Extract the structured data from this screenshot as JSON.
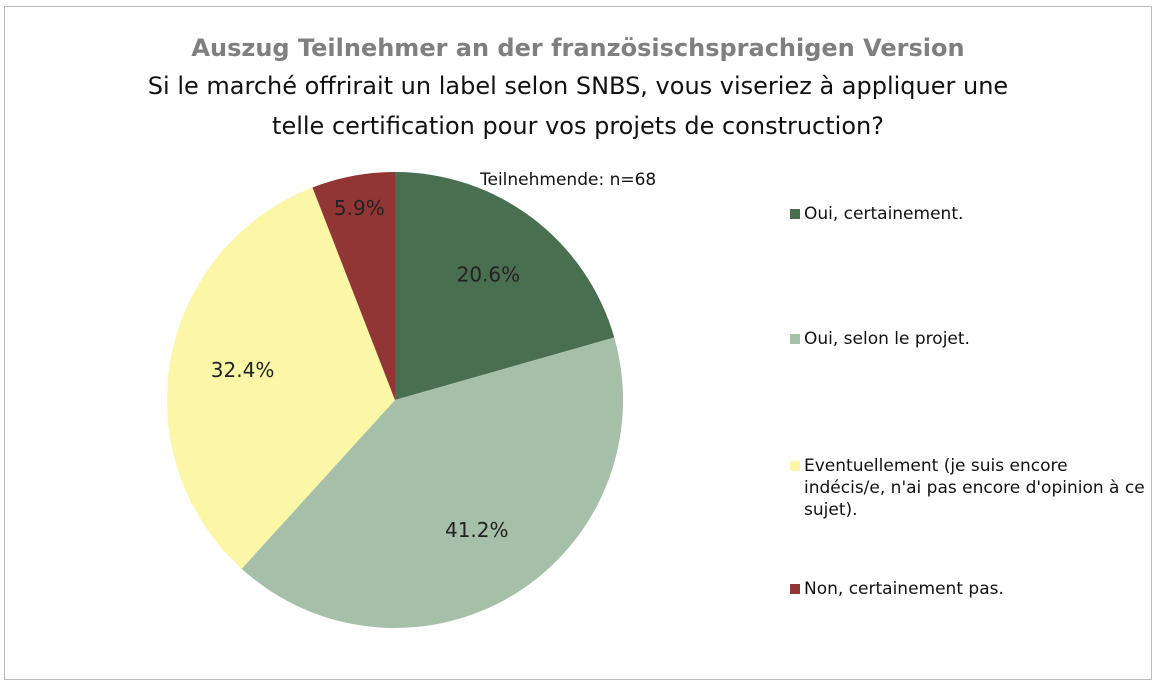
{
  "chart_data": {
    "type": "pie",
    "title": "Auszug Teilnehmer an der französischsprachigen Version",
    "subtitle": "Si le marché offrirait un label selon SNBS, vous viseriez à appliquer une telle certification pour vos projets de construction?",
    "annotation": "Teilnehmende: n=68",
    "categories": [
      "Oui, certainement.",
      "Oui, selon le projet.",
      "Eventuellement (je suis encore indécis/e, n'ai pas encore d'opinion à ce sujet).",
      "Non, certainement pas."
    ],
    "values": [
      20.6,
      41.2,
      32.4,
      5.9
    ],
    "value_labels": [
      "20.6%",
      "41.2%",
      "32.4%",
      "5.9%"
    ],
    "colors": [
      "#4a6e50",
      "#a5bfa8",
      "#fbf7a6",
      "#923535"
    ],
    "legend": "right"
  }
}
